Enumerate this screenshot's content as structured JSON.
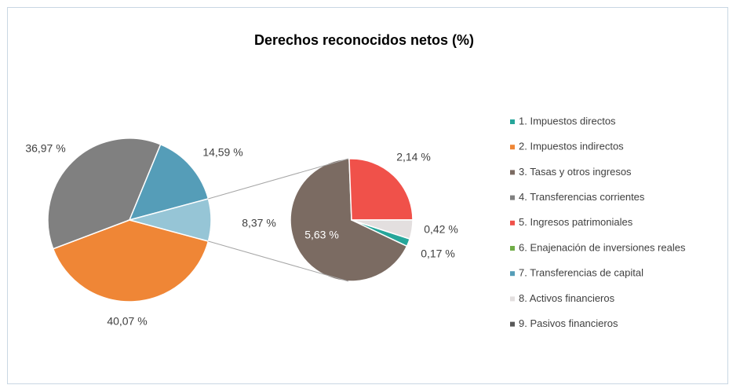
{
  "chart_data": {
    "type": "pie_of_pie",
    "title": "Derechos reconocidos netos (%)",
    "categories": [
      "1. Impuestos directos",
      "2. Impuestos indirectos",
      "3. Tasas y otros ingresos",
      "4. Transferencias corrientes",
      "5. Ingresos patrimoniales",
      "6. Enajenación de inversiones reales",
      "7. Transferencias de capital",
      "8. Activos financieros",
      "9. Pasivos financieros"
    ],
    "values": [
      0.17,
      40.07,
      5.63,
      36.97,
      2.14,
      null,
      14.59,
      0.42,
      null
    ],
    "value_labels": [
      "0,17 %",
      "40,07 %",
      "5,63 %",
      "36,97 %",
      "2,14 %",
      null,
      "14,59 %",
      "0,42 %",
      null
    ],
    "colors": [
      "#26a69a",
      "#ef8636",
      "#7b6b62",
      "#808080",
      "#f0514a",
      "#70ad47",
      "#559db8",
      "#e3dfdf",
      "#595959"
    ],
    "in_secondary": [
      true,
      false,
      true,
      false,
      true,
      false,
      false,
      true,
      false
    ],
    "other_value": 8.37,
    "other_value_label": "8,37 %",
    "other_color": "#96c5d6",
    "legend": "right"
  }
}
